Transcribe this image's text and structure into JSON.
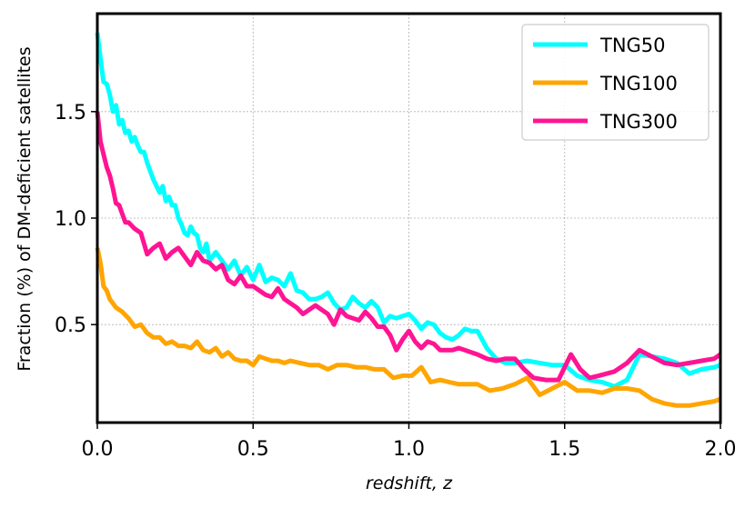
{
  "chart_data": {
    "type": "line",
    "xlabel": "redshift, z",
    "ylabel": "Fraction (%) of DM-deficient satellites",
    "xlim": [
      0.0,
      2.0
    ],
    "ylim": [
      0.04,
      1.96
    ],
    "xticks": [
      "0.0",
      "0.5",
      "1.0",
      "1.5",
      "2.0"
    ],
    "yticks": [
      "0.5",
      "1.0",
      "1.5"
    ],
    "grid": true,
    "legend_position": "top-right",
    "series": [
      {
        "name": "TNG50",
        "color": "#00ffff",
        "x": [
          0.0,
          0.01,
          0.02,
          0.03,
          0.04,
          0.05,
          0.06,
          0.07,
          0.08,
          0.09,
          0.1,
          0.11,
          0.12,
          0.13,
          0.14,
          0.15,
          0.16,
          0.17,
          0.18,
          0.19,
          0.2,
          0.21,
          0.22,
          0.23,
          0.24,
          0.25,
          0.26,
          0.27,
          0.28,
          0.29,
          0.3,
          0.31,
          0.32,
          0.33,
          0.34,
          0.35,
          0.36,
          0.38,
          0.4,
          0.42,
          0.44,
          0.46,
          0.48,
          0.5,
          0.52,
          0.54,
          0.56,
          0.58,
          0.6,
          0.62,
          0.64,
          0.66,
          0.68,
          0.7,
          0.72,
          0.74,
          0.76,
          0.78,
          0.8,
          0.82,
          0.84,
          0.86,
          0.88,
          0.9,
          0.92,
          0.94,
          0.96,
          0.98,
          1.0,
          1.02,
          1.04,
          1.06,
          1.08,
          1.1,
          1.12,
          1.14,
          1.16,
          1.18,
          1.2,
          1.22,
          1.25,
          1.28,
          1.31,
          1.34,
          1.38,
          1.42,
          1.46,
          1.5,
          1.54,
          1.58,
          1.62,
          1.66,
          1.7,
          1.74,
          1.78,
          1.82,
          1.86,
          1.9,
          1.94,
          1.98,
          2.0
        ],
        "y": [
          1.87,
          1.75,
          1.64,
          1.63,
          1.58,
          1.5,
          1.53,
          1.44,
          1.46,
          1.4,
          1.41,
          1.36,
          1.38,
          1.34,
          1.31,
          1.31,
          1.26,
          1.22,
          1.18,
          1.15,
          1.12,
          1.15,
          1.08,
          1.1,
          1.06,
          1.06,
          1.0,
          0.97,
          0.93,
          0.92,
          0.96,
          0.93,
          0.92,
          0.86,
          0.84,
          0.88,
          0.8,
          0.84,
          0.8,
          0.76,
          0.8,
          0.73,
          0.77,
          0.71,
          0.78,
          0.7,
          0.72,
          0.71,
          0.68,
          0.74,
          0.66,
          0.65,
          0.62,
          0.62,
          0.63,
          0.65,
          0.6,
          0.57,
          0.58,
          0.63,
          0.6,
          0.58,
          0.61,
          0.58,
          0.51,
          0.54,
          0.53,
          0.54,
          0.55,
          0.52,
          0.48,
          0.51,
          0.5,
          0.46,
          0.44,
          0.43,
          0.45,
          0.48,
          0.47,
          0.47,
          0.39,
          0.34,
          0.32,
          0.32,
          0.33,
          0.32,
          0.31,
          0.31,
          0.26,
          0.24,
          0.23,
          0.21,
          0.24,
          0.36,
          0.35,
          0.34,
          0.32,
          0.27,
          0.29,
          0.3,
          0.31
        ]
      },
      {
        "name": "TNG100",
        "color": "#ffa500",
        "x": [
          0.0,
          0.01,
          0.02,
          0.03,
          0.04,
          0.05,
          0.06,
          0.07,
          0.08,
          0.1,
          0.12,
          0.14,
          0.16,
          0.18,
          0.2,
          0.22,
          0.24,
          0.26,
          0.28,
          0.3,
          0.32,
          0.34,
          0.36,
          0.38,
          0.4,
          0.42,
          0.44,
          0.46,
          0.48,
          0.5,
          0.52,
          0.54,
          0.56,
          0.58,
          0.6,
          0.62,
          0.65,
          0.68,
          0.71,
          0.74,
          0.77,
          0.8,
          0.83,
          0.86,
          0.89,
          0.92,
          0.95,
          0.98,
          1.01,
          1.04,
          1.07,
          1.1,
          1.13,
          1.16,
          1.19,
          1.22,
          1.26,
          1.3,
          1.34,
          1.38,
          1.42,
          1.46,
          1.5,
          1.54,
          1.58,
          1.62,
          1.66,
          1.7,
          1.74,
          1.78,
          1.82,
          1.86,
          1.9,
          1.94,
          1.98,
          2.0
        ],
        "y": [
          0.86,
          0.79,
          0.68,
          0.66,
          0.62,
          0.6,
          0.58,
          0.57,
          0.56,
          0.53,
          0.49,
          0.5,
          0.46,
          0.44,
          0.44,
          0.41,
          0.42,
          0.4,
          0.4,
          0.39,
          0.42,
          0.38,
          0.37,
          0.39,
          0.35,
          0.37,
          0.34,
          0.33,
          0.33,
          0.31,
          0.35,
          0.34,
          0.33,
          0.33,
          0.32,
          0.33,
          0.32,
          0.31,
          0.31,
          0.29,
          0.31,
          0.31,
          0.3,
          0.3,
          0.29,
          0.29,
          0.25,
          0.26,
          0.26,
          0.3,
          0.23,
          0.24,
          0.23,
          0.22,
          0.22,
          0.22,
          0.19,
          0.2,
          0.22,
          0.25,
          0.17,
          0.2,
          0.23,
          0.19,
          0.19,
          0.18,
          0.2,
          0.2,
          0.19,
          0.15,
          0.13,
          0.12,
          0.12,
          0.13,
          0.14,
          0.15
        ]
      },
      {
        "name": "TNG300",
        "color": "#ff1493",
        "x": [
          0.0,
          0.01,
          0.02,
          0.03,
          0.04,
          0.05,
          0.06,
          0.07,
          0.08,
          0.09,
          0.1,
          0.12,
          0.14,
          0.16,
          0.18,
          0.2,
          0.22,
          0.24,
          0.26,
          0.28,
          0.3,
          0.32,
          0.34,
          0.36,
          0.38,
          0.4,
          0.42,
          0.44,
          0.46,
          0.48,
          0.5,
          0.52,
          0.54,
          0.56,
          0.58,
          0.6,
          0.62,
          0.64,
          0.66,
          0.68,
          0.7,
          0.72,
          0.74,
          0.76,
          0.78,
          0.8,
          0.82,
          0.84,
          0.86,
          0.88,
          0.9,
          0.92,
          0.94,
          0.96,
          0.98,
          1.0,
          1.02,
          1.04,
          1.06,
          1.08,
          1.1,
          1.12,
          1.14,
          1.16,
          1.18,
          1.2,
          1.22,
          1.25,
          1.28,
          1.31,
          1.34,
          1.37,
          1.4,
          1.44,
          1.48,
          1.52,
          1.55,
          1.58,
          1.61,
          1.66,
          1.7,
          1.74,
          1.78,
          1.82,
          1.86,
          1.9,
          1.94,
          1.98,
          2.0
        ],
        "y": [
          1.5,
          1.36,
          1.3,
          1.24,
          1.2,
          1.14,
          1.07,
          1.06,
          1.02,
          0.98,
          0.98,
          0.95,
          0.93,
          0.83,
          0.86,
          0.88,
          0.81,
          0.84,
          0.86,
          0.82,
          0.78,
          0.84,
          0.8,
          0.79,
          0.76,
          0.78,
          0.71,
          0.69,
          0.73,
          0.68,
          0.68,
          0.66,
          0.64,
          0.63,
          0.67,
          0.62,
          0.6,
          0.58,
          0.55,
          0.57,
          0.59,
          0.57,
          0.55,
          0.5,
          0.57,
          0.54,
          0.53,
          0.52,
          0.56,
          0.53,
          0.49,
          0.49,
          0.45,
          0.38,
          0.43,
          0.47,
          0.42,
          0.39,
          0.42,
          0.41,
          0.38,
          0.38,
          0.38,
          0.39,
          0.38,
          0.37,
          0.36,
          0.34,
          0.33,
          0.34,
          0.34,
          0.29,
          0.25,
          0.24,
          0.24,
          0.36,
          0.29,
          0.25,
          0.26,
          0.28,
          0.32,
          0.38,
          0.35,
          0.32,
          0.31,
          0.32,
          0.33,
          0.34,
          0.36
        ]
      }
    ]
  }
}
